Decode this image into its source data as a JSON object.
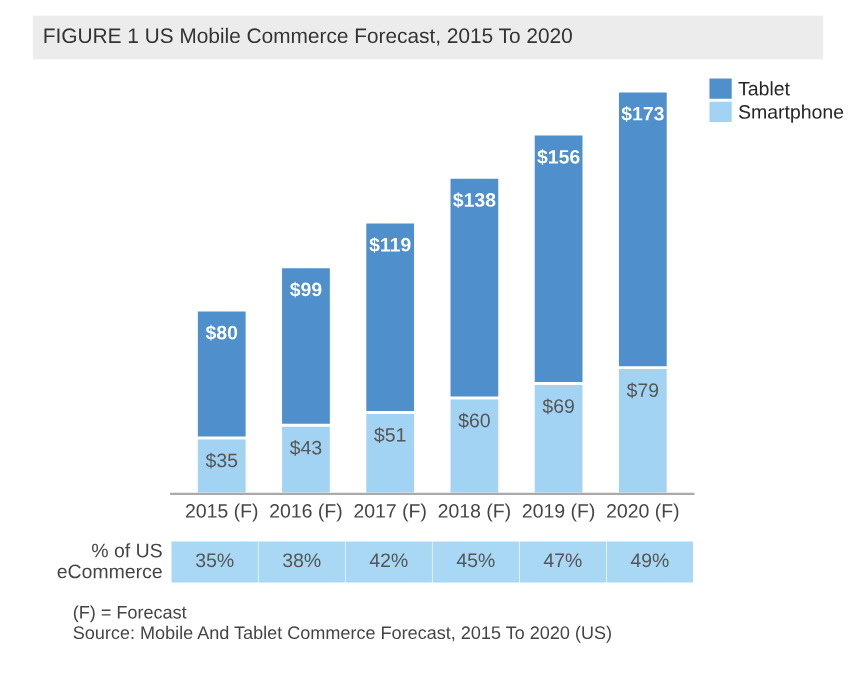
{
  "chart_data": {
    "type": "bar",
    "title": "FIGURE 1 US Mobile Commerce Forecast, 2015 To 2020",
    "categories": [
      "2015 (F)",
      "2016 (F)",
      "2017 (F)",
      "2018 (F)",
      "2019 (F)",
      "2020 (F)"
    ],
    "stacked": true,
    "data_labels": false,
    "legend": "top right",
    "series": [
      {
        "name": "Smartphone",
        "color": "#a3d3f2",
        "values": [
          35,
          43,
          51,
          60,
          69,
          79
        ],
        "value_labels": [
          "$35",
          "$43",
          "$51",
          "$60",
          "$69",
          "$79"
        ]
      },
      {
        "name": "Tablet",
        "color": "#4f8fcb",
        "values": [
          80,
          99,
          119,
          138,
          156,
          173
        ],
        "value_labels": [
          "$80",
          "$99",
          "$119",
          "$138",
          "$156",
          "$173"
        ]
      }
    ],
    "annotations": [
      "% of US eCommerce",
      "35%",
      "38%",
      "42%",
      "45%",
      "47%",
      "49%",
      "(F) = Forecast",
      "Source: Mobile And Tablet Commerce Forecast, 2015 To 2020 (US)"
    ]
  }
}
